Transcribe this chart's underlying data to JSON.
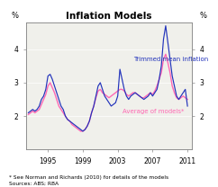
{
  "title": "Inflation Models",
  "ylabel_left": "%",
  "ylabel_right": "%",
  "ylim": [
    1.0,
    4.8
  ],
  "yticks": [
    2,
    3,
    4
  ],
  "xlim": [
    1992.5,
    2011.5
  ],
  "xticks": [
    1995,
    1999,
    2003,
    2007,
    2011
  ],
  "footnote": "* See Norman and Richards (2010) for details of the models\nSources: ABS; RBA",
  "trimmed_label": "Trimmed mean inflation",
  "models_label": "Average of models*",
  "trimmed_color": "#2233bb",
  "models_color": "#ff69b4",
  "background_color": "#f0f0eb",
  "trimmed_x": [
    1992.75,
    1993.0,
    1993.25,
    1993.5,
    1993.75,
    1994.0,
    1994.25,
    1994.5,
    1994.75,
    1995.0,
    1995.25,
    1995.5,
    1995.75,
    1996.0,
    1996.25,
    1996.5,
    1996.75,
    1997.0,
    1997.25,
    1997.5,
    1997.75,
    1998.0,
    1998.25,
    1998.5,
    1998.75,
    1999.0,
    1999.25,
    1999.5,
    1999.75,
    2000.0,
    2000.25,
    2000.5,
    2000.75,
    2001.0,
    2001.25,
    2001.5,
    2001.75,
    2002.0,
    2002.25,
    2002.5,
    2002.75,
    2003.0,
    2003.25,
    2003.5,
    2003.75,
    2004.0,
    2004.25,
    2004.5,
    2004.75,
    2005.0,
    2005.25,
    2005.5,
    2005.75,
    2006.0,
    2006.25,
    2006.5,
    2006.75,
    2007.0,
    2007.25,
    2007.5,
    2007.75,
    2008.0,
    2008.25,
    2008.5,
    2008.75,
    2009.0,
    2009.25,
    2009.5,
    2009.75,
    2010.0,
    2010.25,
    2010.5,
    2010.75,
    2011.0
  ],
  "trimmed_y": [
    2.1,
    2.15,
    2.2,
    2.15,
    2.2,
    2.3,
    2.5,
    2.6,
    2.8,
    3.2,
    3.25,
    3.1,
    2.9,
    2.7,
    2.5,
    2.3,
    2.2,
    2.0,
    1.9,
    1.85,
    1.8,
    1.75,
    1.7,
    1.65,
    1.6,
    1.55,
    1.6,
    1.7,
    1.85,
    2.1,
    2.3,
    2.6,
    2.9,
    3.0,
    2.8,
    2.6,
    2.5,
    2.4,
    2.3,
    2.35,
    2.4,
    2.6,
    3.4,
    3.1,
    2.8,
    2.6,
    2.5,
    2.6,
    2.65,
    2.7,
    2.65,
    2.6,
    2.55,
    2.5,
    2.55,
    2.6,
    2.7,
    2.6,
    2.7,
    2.8,
    3.1,
    3.5,
    4.3,
    4.7,
    4.2,
    3.7,
    3.2,
    2.9,
    2.6,
    2.5,
    2.6,
    2.7,
    2.8,
    2.3
  ],
  "models_x": [
    1992.75,
    1993.0,
    1993.25,
    1993.5,
    1993.75,
    1994.0,
    1994.25,
    1994.5,
    1994.75,
    1995.0,
    1995.25,
    1995.5,
    1995.75,
    1996.0,
    1996.25,
    1996.5,
    1996.75,
    1997.0,
    1997.25,
    1997.5,
    1997.75,
    1998.0,
    1998.25,
    1998.5,
    1998.75,
    1999.0,
    1999.25,
    1999.5,
    1999.75,
    2000.0,
    2000.25,
    2000.5,
    2000.75,
    2001.0,
    2001.25,
    2001.5,
    2001.75,
    2002.0,
    2002.25,
    2002.5,
    2002.75,
    2003.0,
    2003.25,
    2003.5,
    2003.75,
    2004.0,
    2004.25,
    2004.5,
    2004.75,
    2005.0,
    2005.25,
    2005.5,
    2005.75,
    2006.0,
    2006.25,
    2006.5,
    2006.75,
    2007.0,
    2007.25,
    2007.5,
    2007.75,
    2008.0,
    2008.25,
    2008.5,
    2008.75,
    2009.0,
    2009.25,
    2009.5,
    2009.75,
    2010.0,
    2010.25,
    2010.5,
    2010.75,
    2011.0
  ],
  "models_y": [
    2.05,
    2.1,
    2.15,
    2.1,
    2.15,
    2.2,
    2.35,
    2.5,
    2.65,
    2.9,
    3.0,
    2.85,
    2.7,
    2.5,
    2.3,
    2.2,
    2.1,
    2.0,
    1.9,
    1.85,
    1.75,
    1.7,
    1.65,
    1.6,
    1.55,
    1.55,
    1.6,
    1.7,
    1.85,
    2.1,
    2.3,
    2.55,
    2.75,
    2.8,
    2.7,
    2.65,
    2.6,
    2.55,
    2.6,
    2.65,
    2.7,
    2.75,
    2.8,
    2.8,
    2.75,
    2.65,
    2.6,
    2.65,
    2.7,
    2.7,
    2.65,
    2.6,
    2.55,
    2.55,
    2.6,
    2.65,
    2.7,
    2.65,
    2.75,
    2.9,
    3.1,
    3.3,
    3.7,
    3.85,
    3.6,
    3.3,
    2.9,
    2.7,
    2.55,
    2.5,
    2.55,
    2.6,
    2.55,
    2.5
  ],
  "trimmed_ann_x": 2004.8,
  "trimmed_ann_y": 3.65,
  "models_ann_x": 2003.5,
  "models_ann_y": 2.08
}
